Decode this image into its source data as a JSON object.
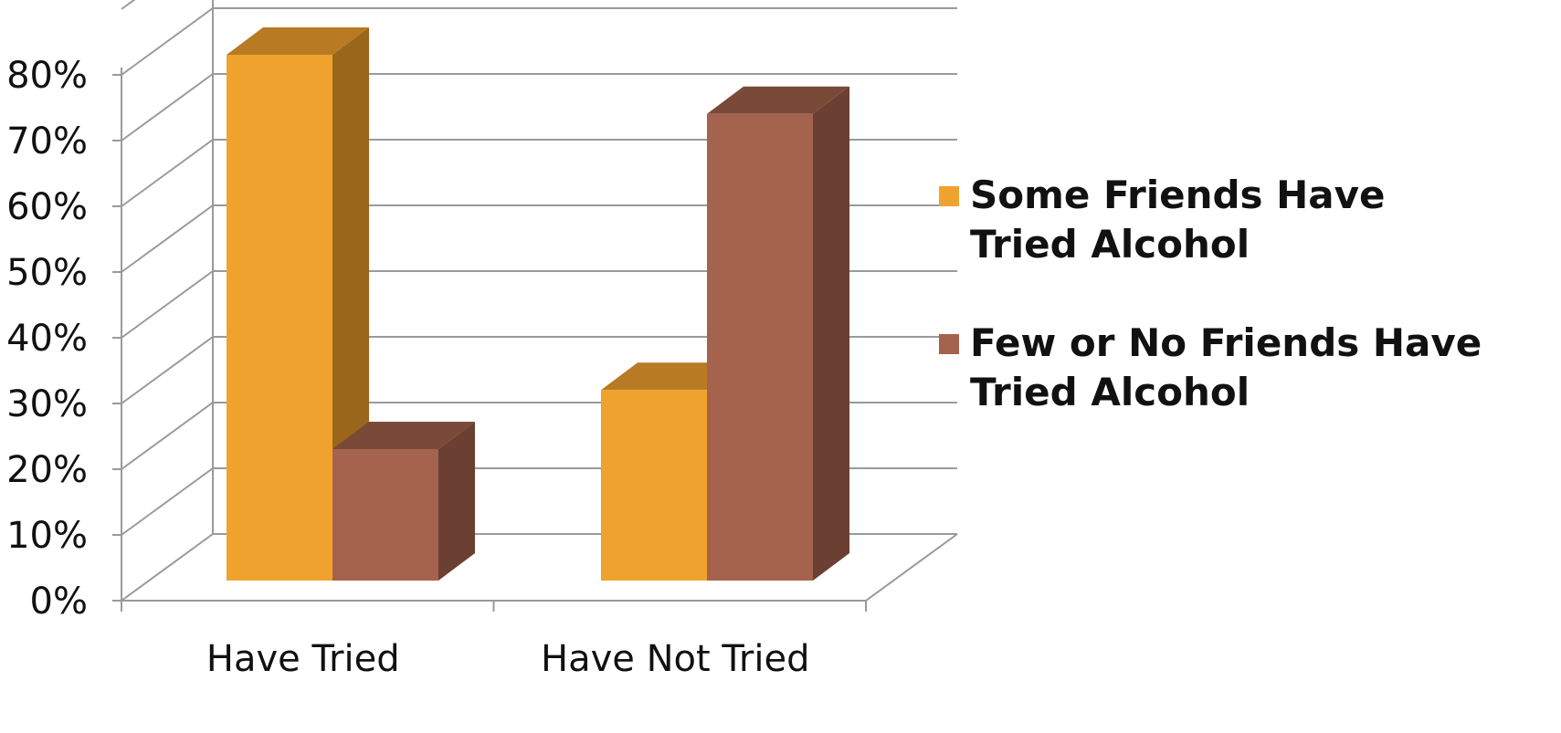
{
  "chart_data": {
    "type": "bar",
    "categories": [
      "Have Tried",
      "Have Not Tried"
    ],
    "series": [
      {
        "name": "Some Friends Have Tried Alcohol",
        "legend_lines": [
          "Some Friends Have",
          "Tried Alcohol"
        ],
        "values": [
          80,
          29
        ],
        "color": "#f0a22e",
        "top_color": "#b87a22",
        "side_color": "#9a661c"
      },
      {
        "name": "Few or No Friends Have Tried Alcohol",
        "legend_lines": [
          "Few or No Friends Have",
          "Tried Alcohol"
        ],
        "values": [
          20,
          71
        ],
        "color": "#a5634d",
        "top_color": "#7a4a39",
        "side_color": "#6b3f32"
      }
    ],
    "y_ticks": [
      "0%",
      "10%",
      "20%",
      "30%",
      "40%",
      "50%",
      "60%",
      "70%",
      "80%"
    ],
    "ylim": [
      0,
      80
    ],
    "xlabel": "",
    "ylabel": "",
    "title": "",
    "legend_position": "right",
    "grid": true
  }
}
